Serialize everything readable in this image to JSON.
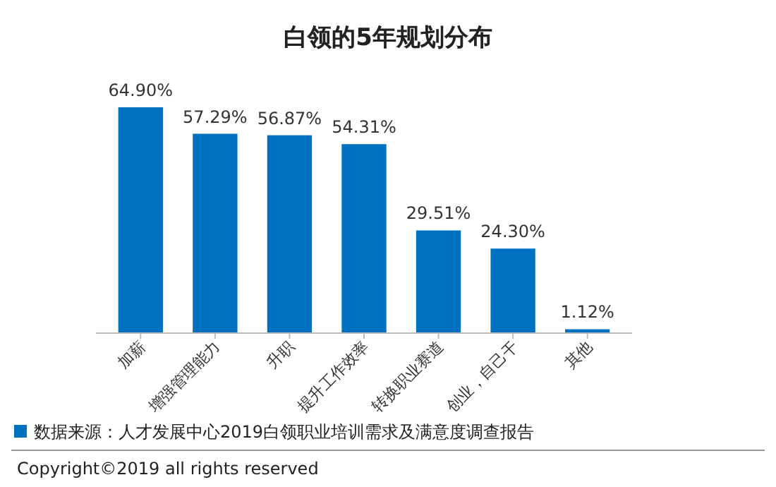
{
  "chart_data": {
    "type": "bar",
    "title": "白领的5年规划分布",
    "categories": [
      "加薪",
      "增强管理能力",
      "升职",
      "提升工作效率",
      "转换职业赛道",
      "创业，自己干",
      "其他"
    ],
    "values": [
      64.9,
      57.29,
      56.87,
      54.31,
      29.51,
      24.3,
      1.12
    ],
    "value_labels": [
      "64.90%",
      "57.29%",
      "56.87%",
      "54.31%",
      "29.51%",
      "24.30%",
      "1.12%"
    ],
    "color": "#0070c0",
    "tick_labels": "x",
    "annotations": [
      "数据来源：人才发展中心2019白领职业培训需求及满意度调查报告",
      "Copyright©2019 all rights reserved"
    ]
  }
}
